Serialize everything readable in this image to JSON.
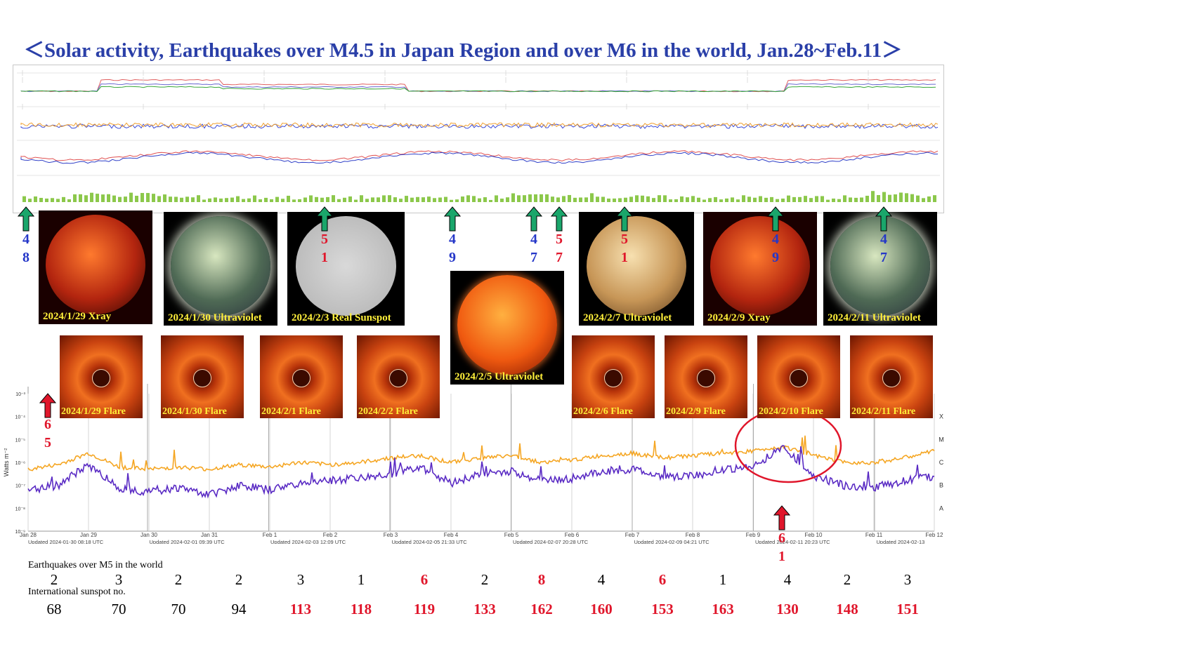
{
  "title": "＜Solar activity, Earthquakes over M4.5 in Japan Region and over M6 in the world, Jan.28~Feb.11＞",
  "colors": {
    "title": "#2a3fa8",
    "red_arrow": "#e0162b",
    "green_arrow": "#1aa66b",
    "orange_series": "#f5a623",
    "purple_series": "#5a2bc4",
    "kp_bars": "#8cc84b"
  },
  "icons": {
    "green_arrow": "arrow-up-icon",
    "red_arrow": "arrow-up-icon"
  },
  "solar_images": [
    {
      "label": "2024/1/29 Xray",
      "kind": "xray"
    },
    {
      "label": "2024/1/30 Ultraviolet",
      "kind": "uv-green"
    },
    {
      "label": "2024/2/3 Real Sunspot",
      "kind": "sunspot"
    },
    {
      "label": "2024/2/5 Ultraviolet",
      "kind": "uv-red"
    },
    {
      "label": "2024/2/7 Ultraviolet",
      "kind": "uv-gold"
    },
    {
      "label": "2024/2/9 Xray",
      "kind": "xray"
    },
    {
      "label": "2024/2/11 Ultraviolet",
      "kind": "uv-green"
    }
  ],
  "flare_images": [
    {
      "label": "2024/1/29 Flare"
    },
    {
      "label": "2024/1/30 Flare"
    },
    {
      "label": "2024/2/1 Flare"
    },
    {
      "label": "2024/2/2 Flare"
    },
    {
      "label": "2024/2/6 Flare"
    },
    {
      "label": "2024/2/9 Flare"
    },
    {
      "label": "2024/2/10 Flare"
    },
    {
      "label": "2024/2/11 Flare"
    }
  ],
  "japan_quake_markers": [
    {
      "d1": "4",
      "d2": "8",
      "color": "blue"
    },
    {
      "d1": "5",
      "d2": "1",
      "color": "red"
    },
    {
      "d1": "4",
      "d2": "9",
      "color": "blue"
    },
    {
      "d1": "4",
      "d2": "7",
      "color": "blue"
    },
    {
      "d1": "5",
      "d2": "7",
      "color": "red"
    },
    {
      "d1": "5",
      "d2": "1",
      "color": "red"
    },
    {
      "d1": "4",
      "d2": "9",
      "color": "blue"
    },
    {
      "d1": "4",
      "d2": "7",
      "color": "blue"
    }
  ],
  "world_quake_markers": [
    {
      "d1": "6",
      "d2": "5"
    },
    {
      "d1": "6",
      "d2": "1"
    }
  ],
  "chart_data": {
    "type": "line",
    "title": "",
    "ylabel": "Watts m⁻²",
    "y_ticks": [
      "10⁻³",
      "10⁻⁴",
      "10⁻⁵",
      "10⁻⁶",
      "10⁻⁷",
      "10⁻⁸",
      "10⁻⁹"
    ],
    "class_labels": [
      "X",
      "M",
      "C",
      "B",
      "A"
    ],
    "x_ticks": [
      "Jan 28",
      "Jan 29",
      "Jan 30",
      "Jan 31",
      "Feb 1",
      "Feb 2",
      "Feb 3",
      "Feb 4",
      "Feb 5",
      "Feb 6",
      "Feb 7",
      "Feb 8",
      "Feb 9",
      "Feb 10",
      "Feb 11",
      "Feb 12"
    ],
    "updated_labels": [
      "Updated 2024-01-30 08:18 UTC",
      "Updated 2024-02-01 09:39 UTC",
      "Updated 2024-02-03 12:09 UTC",
      "Updated 2024-02-05 21:33 UTC",
      "Updated 2024-02-07 20:28 UTC",
      "Updated 2024-02-09 04:21 UTC",
      "Updated 2024-02-11 20:23 UTC",
      "Updated 2024-02-13"
    ],
    "series": [
      {
        "name": "long",
        "values": [
          -6.3,
          -6.1,
          -5.6,
          -6.2,
          -6.3,
          -6.2,
          -6.3,
          -6.1,
          -6.2,
          -6.0,
          -6.1,
          -6.0,
          -5.8,
          -5.7,
          -6.0,
          -5.8,
          -5.7,
          -6.0,
          -5.9,
          -5.7,
          -5.6,
          -5.8,
          -5.7,
          -5.6,
          -5.5,
          -5.3,
          -5.7,
          -6.0,
          -6.0,
          -5.8,
          -5.5
        ]
      },
      {
        "name": "short",
        "values": [
          -7.2,
          -7.0,
          -6.1,
          -7.1,
          -7.3,
          -7.1,
          -7.4,
          -7.0,
          -7.2,
          -6.9,
          -6.8,
          -6.7,
          -6.5,
          -6.2,
          -6.9,
          -6.5,
          -6.4,
          -6.8,
          -6.7,
          -6.4,
          -6.3,
          -6.6,
          -6.6,
          -6.3,
          -6.2,
          -5.3,
          -6.6,
          -7.0,
          -7.1,
          -6.8,
          -6.6
        ]
      }
    ],
    "ylim": [
      -9,
      -3
    ]
  },
  "stats": {
    "world_label": "Earthquakes over M5 in the world",
    "sunspot_label": "International sunspot no.",
    "world_quakes": [
      {
        "v": "2",
        "hl": false
      },
      {
        "v": "3",
        "hl": false
      },
      {
        "v": "2",
        "hl": false
      },
      {
        "v": "2",
        "hl": false
      },
      {
        "v": "3",
        "hl": false
      },
      {
        "v": "1",
        "hl": false
      },
      {
        "v": "6",
        "hl": true
      },
      {
        "v": "2",
        "hl": false
      },
      {
        "v": "8",
        "hl": true
      },
      {
        "v": "4",
        "hl": false
      },
      {
        "v": "6",
        "hl": true
      },
      {
        "v": "1",
        "hl": false
      },
      {
        "v": "4",
        "hl": false
      },
      {
        "v": "2",
        "hl": false
      },
      {
        "v": "3",
        "hl": false
      }
    ],
    "sunspots": [
      {
        "v": "68",
        "hl": false
      },
      {
        "v": "70",
        "hl": false
      },
      {
        "v": "70",
        "hl": false
      },
      {
        "v": "94",
        "hl": false
      },
      {
        "v": "113",
        "hl": true
      },
      {
        "v": "118",
        "hl": true
      },
      {
        "v": "119",
        "hl": true
      },
      {
        "v": "133",
        "hl": true
      },
      {
        "v": "162",
        "hl": true
      },
      {
        "v": "160",
        "hl": true
      },
      {
        "v": "153",
        "hl": true
      },
      {
        "v": "163",
        "hl": true
      },
      {
        "v": "130",
        "hl": true
      },
      {
        "v": "148",
        "hl": true
      },
      {
        "v": "151",
        "hl": true
      }
    ]
  }
}
